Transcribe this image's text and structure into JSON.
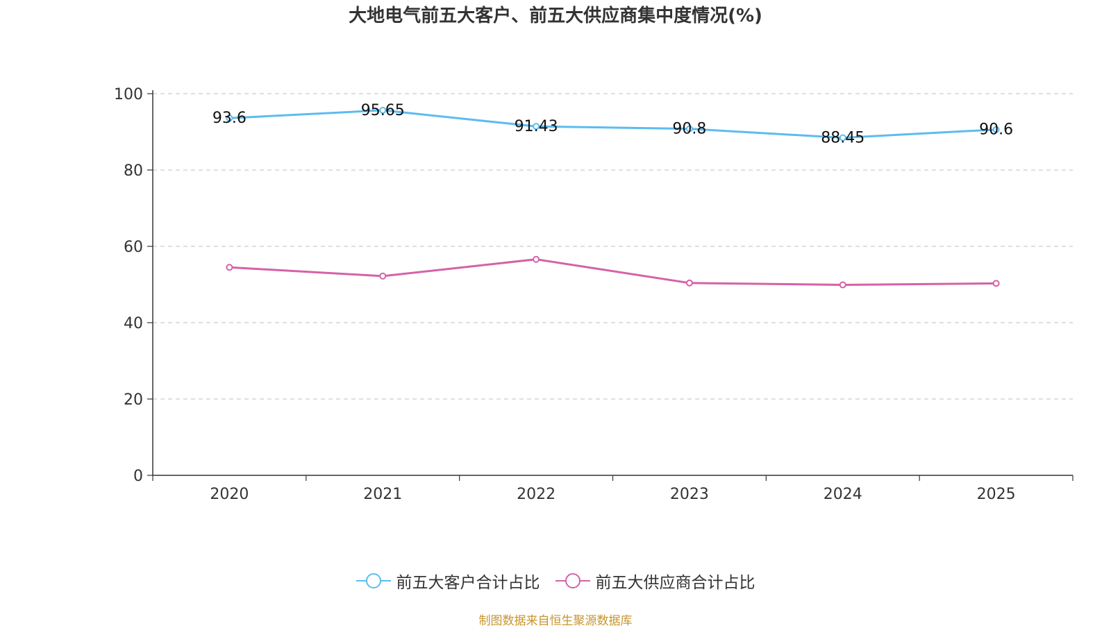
{
  "chart_data": {
    "type": "line",
    "title": "大地电气前五大客户、前五大供应商集中度情况(%)",
    "categories": [
      "2020",
      "2021",
      "2022",
      "2023",
      "2024",
      "2025"
    ],
    "ylim": [
      0,
      100
    ],
    "yticks": [
      "0",
      "20",
      "40",
      "60",
      "80",
      "100"
    ],
    "grid": true,
    "legend_position": "bottom-center",
    "series": [
      {
        "name": "前五大客户合计占比",
        "color": "#5bbcf0",
        "values": [
          93.6,
          95.65,
          91.43,
          90.8,
          88.45,
          90.6
        ],
        "labels": [
          "93.6",
          "95.65",
          "91.43",
          "90.8",
          "88.45",
          "90.6"
        ],
        "show_labels": true
      },
      {
        "name": "前五大供应商合计占比",
        "color": "#d462a8",
        "values": [
          54.5,
          52.2,
          56.6,
          50.4,
          49.9,
          50.3
        ],
        "show_labels": false
      }
    ]
  },
  "source_note": "制图数据来自恒生聚源数据库"
}
